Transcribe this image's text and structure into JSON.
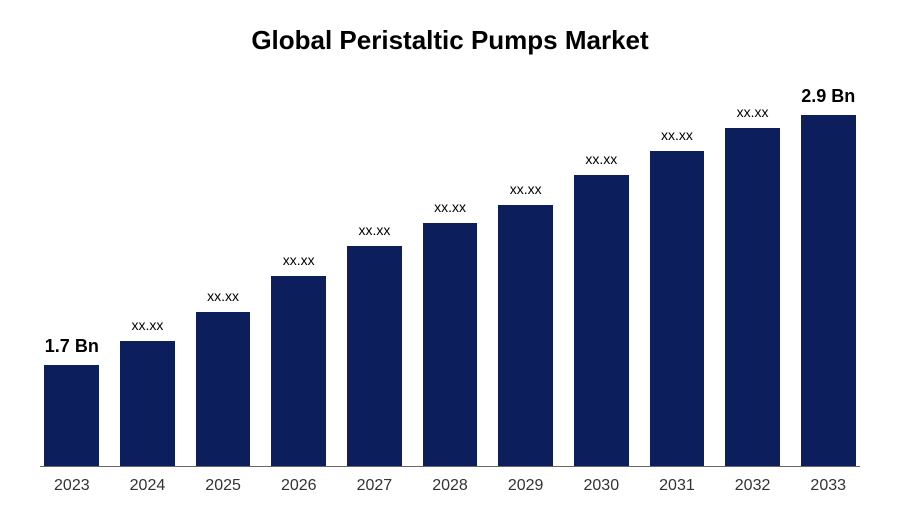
{
  "chart": {
    "type": "bar",
    "title": "Global Peristaltic Pumps Market",
    "title_fontsize": 26,
    "title_color": "#000000",
    "background_color": "#ffffff",
    "bar_color": "#0c1f5c",
    "axis_color": "#666666",
    "label_color": "#000000",
    "xlabel_color": "#333333",
    "xlabel_fontsize": 16,
    "value_label_fontsize": 14,
    "value_label_bold_fontsize": 18,
    "bar_width_percent": 86,
    "ylim": [
      0,
      320
    ],
    "categories": [
      "2023",
      "2024",
      "2025",
      "2026",
      "2027",
      "2028",
      "2029",
      "2030",
      "2031",
      "2032",
      "2033"
    ],
    "values": [
      85,
      105,
      130,
      160,
      185,
      205,
      220,
      245,
      265,
      285,
      300
    ],
    "value_labels": [
      "1.7 Bn",
      "xx.xx",
      "xx.xx",
      "xx.xx",
      "xx.xx",
      "xx.xx",
      "xx.xx",
      "xx.xx",
      "xx.xx",
      "xx.xx",
      "2.9 Bn"
    ],
    "value_label_bold": [
      true,
      false,
      false,
      false,
      false,
      false,
      false,
      false,
      false,
      false,
      true
    ]
  }
}
